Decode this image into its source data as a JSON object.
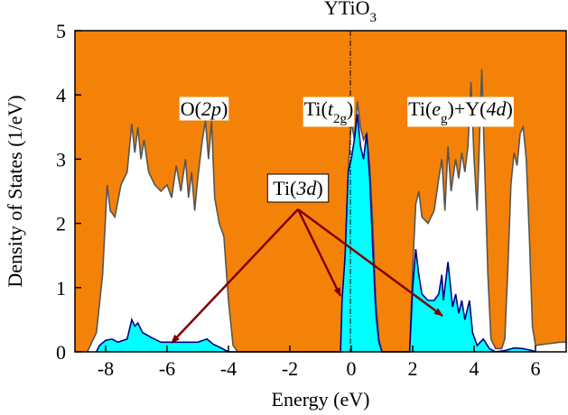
{
  "chart_data": {
    "type": "area",
    "title": [
      {
        "text": "YTiO"
      },
      {
        "text": "3",
        "sub": true
      }
    ],
    "x_label": "Energy (eV)",
    "y_label": "Density of States (1/eV)",
    "xlim": [
      -9,
      7
    ],
    "ylim": [
      0,
      5
    ],
    "xticks": [
      -8,
      -6,
      -4,
      -2,
      0,
      2,
      4,
      6
    ],
    "yticks": [
      0,
      1,
      2,
      3,
      4,
      5
    ],
    "background": "#f58208",
    "series": [
      {
        "line_color": "#555555",
        "fill": "#ffffff",
        "x": [
          -8.6,
          -8.3,
          -8.1,
          -7.95,
          -7.85,
          -7.7,
          -7.5,
          -7.3,
          -7.15,
          -7.05,
          -6.95,
          -6.85,
          -6.75,
          -6.6,
          -6.4,
          -6.2,
          -6.0,
          -5.85,
          -5.7,
          -5.55,
          -5.4,
          -5.3,
          -5.2,
          -5.1,
          -5.0,
          -4.85,
          -4.75,
          -4.65,
          -4.55,
          -4.45,
          -4.3,
          -4.15,
          -4.0,
          -3.85,
          -3.7,
          -0.3,
          -0.2,
          -0.1,
          0,
          0.1,
          0.2,
          0.3,
          0.4,
          0.5,
          0.6,
          0.7,
          0.8,
          0.9,
          1.0,
          1.9,
          2.0,
          2.1,
          2.2,
          2.3,
          2.5,
          2.7,
          2.85,
          2.95,
          3.05,
          3.15,
          3.25,
          3.4,
          3.5,
          3.6,
          3.7,
          3.8,
          3.9,
          4.0,
          4.1,
          4.25,
          4.35,
          4.45,
          4.55,
          4.7,
          4.9,
          5.0,
          5.1,
          5.2,
          5.3,
          5.4,
          5.5,
          5.6,
          5.7,
          5.8,
          5.9,
          6.0,
          6.3,
          6.8,
          7.0
        ],
        "values": [
          0,
          0.3,
          1.2,
          2.6,
          2.2,
          2.1,
          2.6,
          2.8,
          3.55,
          3.1,
          3.5,
          3.0,
          3.3,
          2.8,
          2.6,
          2.5,
          2.6,
          2.4,
          2.9,
          2.5,
          3.0,
          2.4,
          2.8,
          2.2,
          2.7,
          3.3,
          3.6,
          3.0,
          3.6,
          2.4,
          2.0,
          1.8,
          0.8,
          0.1,
          0,
          0,
          1.5,
          2.8,
          3.6,
          3.3,
          3.9,
          3.5,
          3.3,
          3.4,
          2.9,
          2.0,
          0.8,
          0.2,
          0,
          0,
          1.3,
          2.3,
          2.5,
          2.1,
          2.0,
          2.2,
          2.7,
          3.0,
          2.2,
          3.2,
          2.5,
          3.0,
          2.7,
          3.1,
          2.8,
          3.2,
          4.2,
          3.0,
          2.2,
          4.4,
          2.8,
          1.2,
          0.2,
          0.05,
          0.05,
          0.2,
          1.3,
          2.6,
          3.1,
          2.9,
          3.4,
          3.5,
          3.0,
          1.8,
          0.4,
          0.1,
          0.12,
          0.15,
          0.15
        ]
      },
      {
        "line_color": "#000080",
        "fill": "#00ffff",
        "x": [
          -8.3,
          -8.2,
          -8.0,
          -7.8,
          -7.6,
          -7.3,
          -7.15,
          -7.05,
          -6.95,
          -6.8,
          -6.5,
          -6.2,
          -5.8,
          -5.4,
          -5.0,
          -4.7,
          -4.5,
          -4.2,
          -4.0,
          -0.35,
          -0.3,
          -0.2,
          -0.1,
          0,
          0.1,
          0.2,
          0.3,
          0.4,
          0.5,
          0.6,
          0.7,
          0.8,
          0.9,
          1.0,
          1.9,
          2.0,
          2.1,
          2.2,
          2.3,
          2.5,
          2.7,
          2.85,
          2.95,
          3.0,
          3.15,
          3.3,
          3.4,
          3.5,
          3.6,
          3.7,
          3.85,
          3.95,
          4.1,
          4.3,
          4.5,
          4.7,
          5.0,
          5.3,
          5.6,
          5.9,
          6.0
        ],
        "values": [
          0,
          0.1,
          0.18,
          0.2,
          0.15,
          0.2,
          0.5,
          0.4,
          0.45,
          0.3,
          0.22,
          0.15,
          0.15,
          0.15,
          0.15,
          0.2,
          0.12,
          0.05,
          0,
          0,
          0.8,
          1.5,
          2.8,
          3.0,
          3.3,
          3.7,
          3.2,
          3.0,
          3.4,
          2.7,
          1.6,
          0.6,
          0.15,
          0,
          0,
          1.0,
          1.6,
          1.2,
          0.9,
          0.8,
          0.8,
          0.9,
          1.2,
          0.8,
          1.4,
          0.7,
          0.9,
          0.6,
          0.8,
          0.5,
          0.8,
          0.3,
          0.1,
          0.2,
          0.05,
          0,
          0.02,
          0.06,
          0.05,
          0.02,
          0
        ]
      }
    ],
    "annotations": [
      {
        "parts": [
          {
            "text": "O("
          },
          {
            "text": "2p",
            "italic": true
          },
          {
            "text": ")"
          }
        ]
      },
      {
        "parts": [
          {
            "text": "Ti("
          },
          {
            "text": "t",
            "italic": true
          },
          {
            "text": "2g",
            "sub": true
          },
          {
            "text": ")"
          }
        ]
      },
      {
        "parts": [
          {
            "text": "Ti("
          },
          {
            "text": "e",
            "italic": true
          },
          {
            "text": "g",
            "sub": true
          },
          {
            "text": ")+Y("
          },
          {
            "text": "4d",
            "italic": true
          },
          {
            "text": ")"
          }
        ]
      },
      {
        "parts": [
          {
            "text": "Ti("
          },
          {
            "text": "3d",
            "italic": true
          },
          {
            "text": ")"
          }
        ],
        "boxed": true
      }
    ]
  }
}
